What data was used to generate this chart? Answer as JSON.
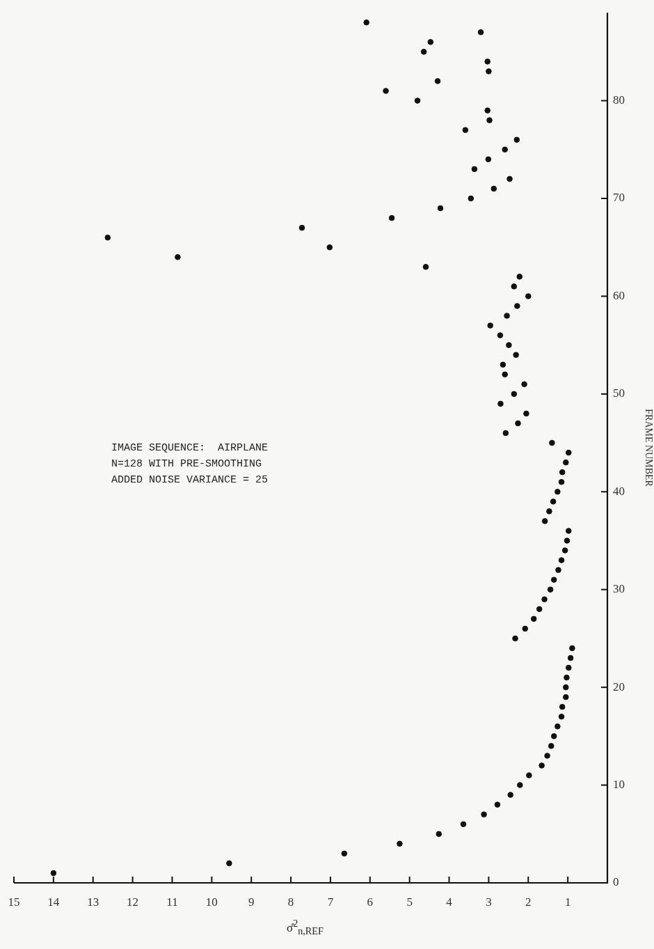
{
  "chart_data": {
    "type": "scatter",
    "xlabel": "σ̂$^{2}$$_{n,REF}$",
    "ylabel": "FRAME NUMBER",
    "annotations": [
      "IMAGE SEQUENCE:  AIRPLANE",
      "N=128 WITH PRE-SMOOTHING",
      "ADDED NOISE VARIANCE = 25"
    ],
    "values": [
      1,
      2,
      3,
      4,
      5,
      6,
      7,
      8,
      9,
      10,
      11,
      12,
      13,
      14,
      15,
      16,
      17,
      18,
      19,
      20,
      21,
      22,
      23,
      24,
      25,
      26,
      27,
      28,
      29,
      30,
      31,
      32,
      33,
      34,
      35,
      36,
      37,
      38,
      39,
      40,
      41,
      42,
      43,
      44,
      45,
      46,
      47,
      48,
      49,
      50,
      51,
      52,
      53,
      54,
      55,
      56,
      57,
      58,
      59,
      60,
      61,
      62,
      63,
      64,
      65,
      66,
      67,
      68,
      69,
      70,
      71,
      72,
      73,
      74,
      75,
      76,
      77,
      78,
      79,
      80,
      81,
      82,
      83,
      84,
      85,
      86,
      87,
      88
    ],
    "x": [
      14.0,
      9.56,
      6.65,
      5.25,
      4.26,
      3.64,
      3.12,
      2.78,
      2.45,
      2.21,
      1.98,
      1.66,
      1.52,
      1.42,
      1.35,
      1.26,
      1.16,
      1.14,
      1.05,
      1.05,
      1.03,
      0.98,
      0.93,
      0.89,
      2.33,
      2.08,
      1.86,
      1.72,
      1.59,
      1.44,
      1.35,
      1.24,
      1.16,
      1.07,
      1.02,
      0.98,
      1.58,
      1.47,
      1.37,
      1.26,
      1.16,
      1.14,
      1.05,
      0.98,
      1.4,
      2.57,
      2.26,
      2.05,
      2.7,
      2.36,
      2.1,
      2.59,
      2.64,
      2.31,
      2.49,
      2.71,
      2.96,
      2.54,
      2.28,
      2.0,
      2.36,
      2.22,
      4.59,
      10.86,
      7.02,
      12.63,
      7.72,
      5.45,
      4.22,
      3.45,
      2.87,
      2.47,
      3.36,
      3.01,
      2.59,
      2.29,
      3.59,
      2.98,
      3.03,
      4.8,
      5.6,
      4.29,
      3.0,
      3.03,
      4.64,
      4.47,
      3.2,
      6.09
    ],
    "color": "#111111",
    "marker": "circle",
    "grid": false,
    "legend": false,
    "ylim": [
      0,
      89
    ],
    "yticks": [
      0,
      10,
      20,
      30,
      40,
      50,
      60,
      70,
      80
    ],
    "xlim": [
      15,
      0
    ],
    "xticks": [
      1,
      2,
      3,
      4,
      5,
      6,
      7,
      8,
      9,
      10,
      11,
      12,
      13,
      14,
      15
    ]
  }
}
